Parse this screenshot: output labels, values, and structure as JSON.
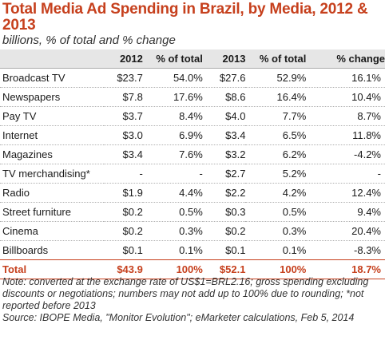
{
  "chart_data": {
    "type": "table",
    "title": "Total Media Ad Spending in Brazil, by Media, 2012 & 2013",
    "subtitle": "billions, % of total and % change",
    "columns": [
      "",
      "2012",
      "% of total",
      "2013",
      "% of total",
      "% change"
    ],
    "rows": [
      [
        "Broadcast TV",
        "$23.7",
        "54.0%",
        "$27.6",
        "52.9%",
        "16.1%"
      ],
      [
        "Newspapers",
        "$7.8",
        "17.6%",
        "$8.6",
        "16.4%",
        "10.4%"
      ],
      [
        "Pay TV",
        "$3.7",
        "8.4%",
        "$4.0",
        "7.7%",
        "8.7%"
      ],
      [
        "Internet",
        "$3.0",
        "6.9%",
        "$3.4",
        "6.5%",
        "11.8%"
      ],
      [
        "Magazines",
        "$3.4",
        "7.6%",
        "$3.2",
        "6.2%",
        "-4.2%"
      ],
      [
        "TV merchandising*",
        "-",
        "-",
        "$2.7",
        "5.2%",
        "-"
      ],
      [
        "Radio",
        "$1.9",
        "4.4%",
        "$2.2",
        "4.2%",
        "12.4%"
      ],
      [
        "Street furniture",
        "$0.2",
        "0.5%",
        "$0.3",
        "0.5%",
        "9.4%"
      ],
      [
        "Cinema",
        "$0.2",
        "0.3%",
        "$0.2",
        "0.3%",
        "20.4%"
      ],
      [
        "Billboards",
        "$0.1",
        "0.1%",
        "$0.1",
        "0.1%",
        "-8.3%"
      ]
    ],
    "total": [
      "Total",
      "$43.9",
      "100%",
      "$52.1",
      "100%",
      "18.7%"
    ],
    "note": "Note: converted at the exchange rate of US$1=BRL2.16; gross spending excluding discounts or negotiations; numbers may not add up to 100% due to rounding; *not reported before 2013",
    "source": "Source: IBOPE Media, \"Monitor Evolution\"; eMarketer calculations, Feb 5, 2014"
  },
  "colors": {
    "accent": "#c6401d",
    "header_bg": "#e6e6e6"
  }
}
